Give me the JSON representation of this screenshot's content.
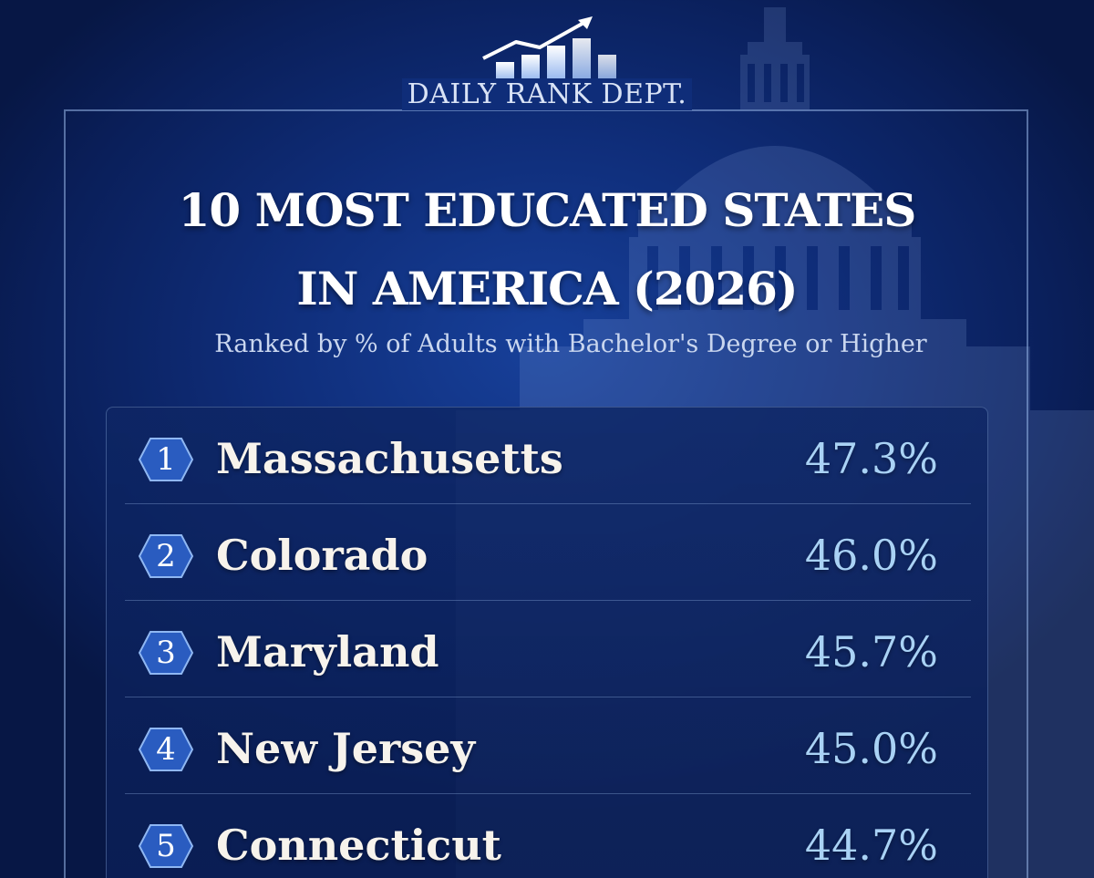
{
  "brand": {
    "name": "DAILY RANK DEPT.",
    "logo_icon": "rising-bar-chart-icon"
  },
  "title_line1": "10 MOST EDUCATED STATES",
  "title_line2": "IN AMERICA (2026)",
  "subtitle": "Ranked by % of Adults with Bachelor's Degree or Higher",
  "background_icon": "capitol-building-icon",
  "colors": {
    "background": "#0f2d79",
    "accent_value": "#a9d2f5",
    "badge": "#2a5cc0",
    "frame": "#96b4e6"
  },
  "rankings": [
    {
      "rank": "1",
      "state": "Massachusetts",
      "value": "47.3%"
    },
    {
      "rank": "2",
      "state": "Colorado",
      "value": "46.0%"
    },
    {
      "rank": "3",
      "state": "Maryland",
      "value": "45.7%"
    },
    {
      "rank": "4",
      "state": "New Jersey",
      "value": "45.0%"
    },
    {
      "rank": "5",
      "state": "Connecticut",
      "value": "44.7%"
    }
  ]
}
